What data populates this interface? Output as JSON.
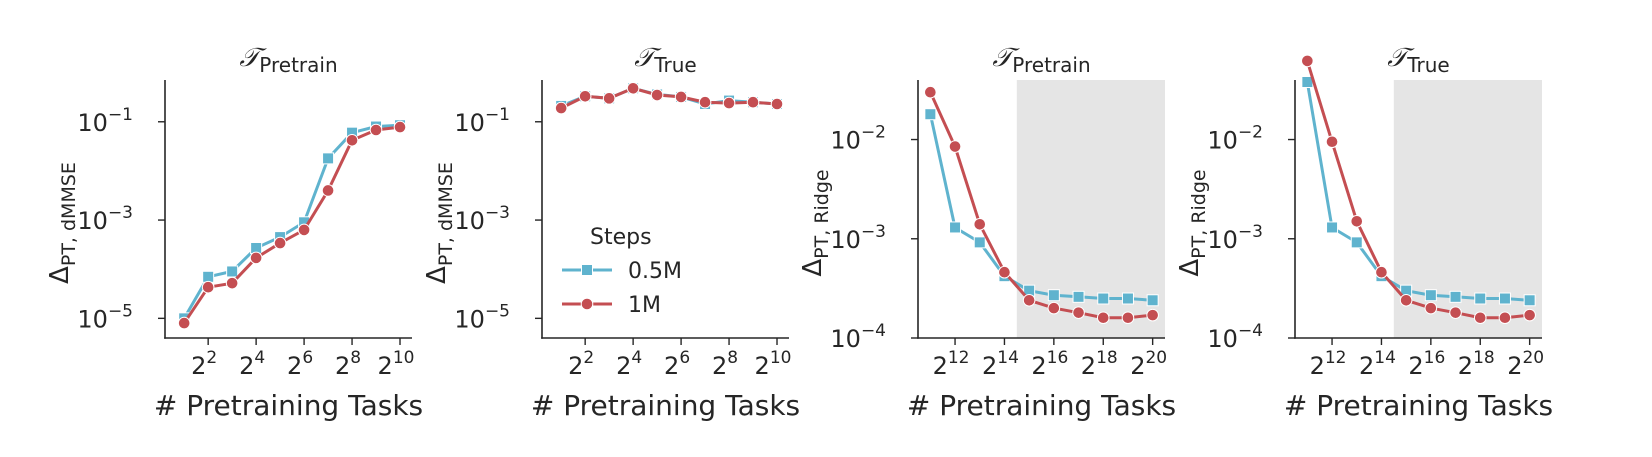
{
  "colors": {
    "steps_0_5M": "#5fb3ce",
    "steps_1M": "#c44e52",
    "shade": "#e5e5e5",
    "axis": "#262626"
  },
  "legend": {
    "title": "Steps",
    "entries": [
      "0.5M",
      "1M"
    ]
  },
  "chart_data": [
    {
      "type": "line",
      "title_main": "𝒯",
      "title_sub": "Pretrain",
      "xlabel": "# Pretraining Tasks",
      "ylabel_main": "Δ",
      "ylabel_sub": "PT, dMMSE",
      "x_scale": "log2",
      "y_scale": "log10",
      "xlim_exp": [
        0.2,
        10.5
      ],
      "ylim_exp": [
        -5.4,
        -0.15
      ],
      "x_ticks_exp": [
        2,
        4,
        6,
        8,
        10
      ],
      "y_ticks_exp": [
        -5,
        -3,
        -1
      ],
      "shaded_from_exp": null,
      "x_exp": [
        1,
        2,
        3,
        4,
        5,
        6,
        7,
        8,
        9,
        10
      ],
      "series": [
        {
          "name": "0.5M",
          "y": [
            1e-05,
            7e-05,
            9e-05,
            0.00027,
            0.00045,
            0.0009,
            0.018,
            0.06,
            0.08,
            0.085
          ]
        },
        {
          "name": "1M",
          "y": [
            8e-06,
            4.3e-05,
            5.2e-05,
            0.00017,
            0.00034,
            0.00063,
            0.004,
            0.042,
            0.068,
            0.078
          ]
        }
      ],
      "grid": false
    },
    {
      "type": "line",
      "title_main": "𝒯",
      "title_sub": "True",
      "xlabel": "# Pretraining Tasks",
      "ylabel_main": "Δ",
      "ylabel_sub": "PT, dMMSE",
      "x_scale": "log2",
      "y_scale": "log10",
      "xlim_exp": [
        0.2,
        10.5
      ],
      "ylim_exp": [
        -5.4,
        -0.15
      ],
      "x_ticks_exp": [
        2,
        4,
        6,
        8,
        10
      ],
      "y_ticks_exp": [
        -5,
        -3,
        -1
      ],
      "shaded_from_exp": null,
      "x_exp": [
        1,
        2,
        3,
        4,
        5,
        6,
        7,
        8,
        9,
        10
      ],
      "series": [
        {
          "name": "0.5M",
          "y": [
            0.21,
            0.33,
            0.3,
            0.48,
            0.36,
            0.32,
            0.23,
            0.27,
            0.25,
            0.23
          ]
        },
        {
          "name": "1M",
          "y": [
            0.19,
            0.33,
            0.3,
            0.48,
            0.35,
            0.32,
            0.25,
            0.24,
            0.25,
            0.23
          ]
        }
      ],
      "grid": false
    },
    {
      "type": "line",
      "title_main": "𝒯",
      "title_sub": "Pretrain",
      "xlabel": "# Pretraining Tasks",
      "ylabel_main": "Δ",
      "ylabel_sub": "PT, Ridge",
      "x_scale": "log2",
      "y_scale": "log10",
      "xlim_exp": [
        10.5,
        20.5
      ],
      "ylim_exp": [
        -4,
        -1.4
      ],
      "x_ticks_exp": [
        12,
        14,
        16,
        18,
        20
      ],
      "y_ticks_exp": [
        -4,
        -3,
        -2
      ],
      "shaded_from_exp": 14.5,
      "x_exp": [
        11,
        12,
        13,
        14,
        15,
        16,
        17,
        18,
        19,
        20
      ],
      "series": [
        {
          "name": "0.5M",
          "y": [
            0.018,
            0.0013,
            0.00092,
            0.00042,
            0.0003,
            0.00027,
            0.00026,
            0.00025,
            0.00025,
            0.00024
          ]
        },
        {
          "name": "1M",
          "y": [
            0.03,
            0.0085,
            0.0014,
            0.00046,
            0.00024,
            0.0002,
            0.00018,
            0.00016,
            0.00016,
            0.00017
          ]
        }
      ],
      "grid": false
    },
    {
      "type": "line",
      "title_main": "𝒯",
      "title_sub": "True",
      "xlabel": "# Pretraining Tasks",
      "ylabel_main": "Δ",
      "ylabel_sub": "PT, Ridge",
      "x_scale": "log2",
      "y_scale": "log10",
      "xlim_exp": [
        10.5,
        20.5
      ],
      "ylim_exp": [
        -4,
        -1.4
      ],
      "x_ticks_exp": [
        12,
        14,
        16,
        18,
        20
      ],
      "y_ticks_exp": [
        -4,
        -3,
        -2
      ],
      "shaded_from_exp": 14.5,
      "x_exp": [
        11,
        12,
        13,
        14,
        15,
        16,
        17,
        18,
        19,
        20
      ],
      "series": [
        {
          "name": "0.5M",
          "y": [
            0.038,
            0.0013,
            0.00092,
            0.00042,
            0.0003,
            0.00027,
            0.00026,
            0.00025,
            0.00025,
            0.00024
          ]
        },
        {
          "name": "1M",
          "y": [
            0.062,
            0.0095,
            0.0015,
            0.00046,
            0.00024,
            0.0002,
            0.00018,
            0.00016,
            0.00016,
            0.00017
          ]
        }
      ],
      "grid": false
    }
  ]
}
